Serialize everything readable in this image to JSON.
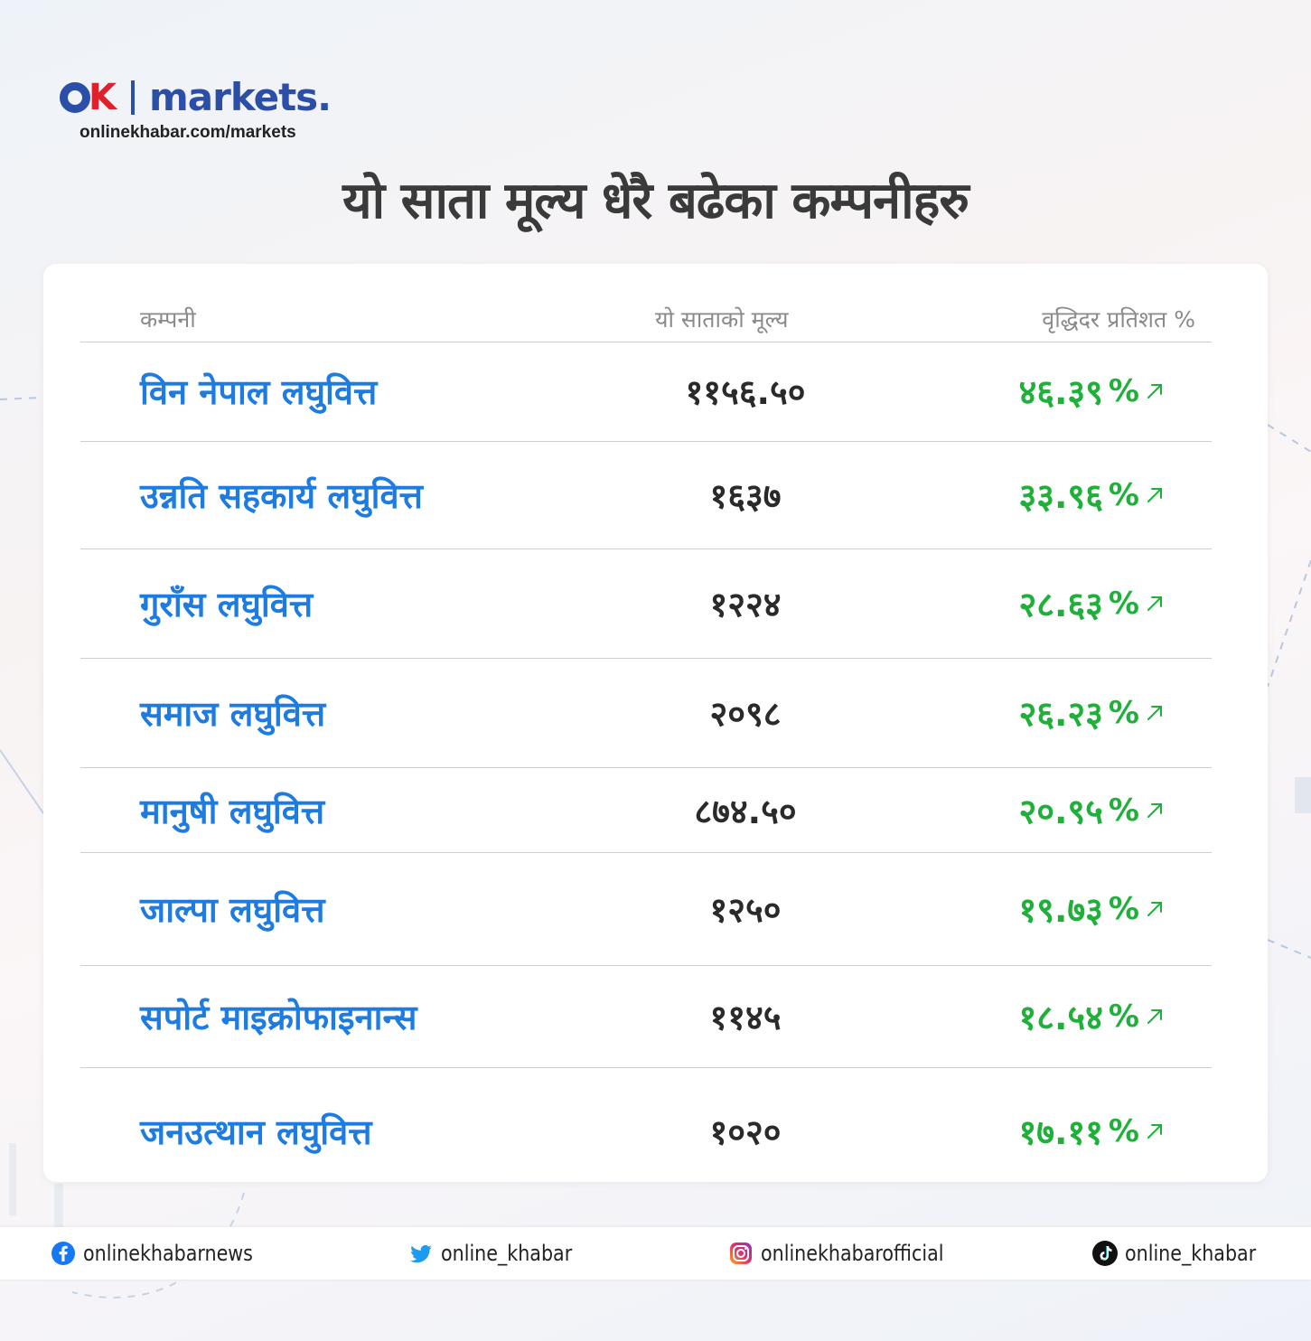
{
  "brand": {
    "name": "markets.",
    "url": "onlinekhabar.com/markets",
    "colors": {
      "blue": "#2b4fa8",
      "red": "#e0202a"
    }
  },
  "title": "यो साता मूल्य धेरै बढेका कम्पनीहरु",
  "table": {
    "headers": [
      "कम्पनी",
      "यो साताको मूल्य",
      "वृद्धिदर प्रतिशत %"
    ],
    "rows": [
      {
        "company": "विन नेपाल लघुवित्त",
        "price": "११५६.५०",
        "growth": "४६.३९"
      },
      {
        "company": "उन्नति सहकार्य लघुवित्त",
        "price": "१६३७",
        "growth": "३३.९६"
      },
      {
        "company": "गुराँस लघुवित्त",
        "price": "१२२४",
        "growth": "२८.६३"
      },
      {
        "company": "समाज लघुवित्त",
        "price": "२०९८",
        "growth": "२६.२३"
      },
      {
        "company": "मानुषी लघुवित्त",
        "price": "८७४.५०",
        "growth": "२०.९५"
      },
      {
        "company": "जाल्पा लघुवित्त",
        "price": "१२५०",
        "growth": "१९.७३"
      },
      {
        "company": "सपोर्ट माइक्रोफाइनान्स",
        "price": "११४५",
        "growth": "१८.५४"
      },
      {
        "company": "जनउत्थान लघुवित्त",
        "price": "१०२०",
        "growth": "१७.११"
      }
    ],
    "percent_sign": "%",
    "colors": {
      "company": "#1e7be0",
      "price": "#2a2a2a",
      "growth": "#1fb03a"
    },
    "growth_icon": "arrow-up-right-icon"
  },
  "footer": {
    "facebook": {
      "icon": "facebook-icon",
      "handle": "onlinekhabarnews"
    },
    "twitter": {
      "icon": "twitter-icon",
      "handle": "online_khabar"
    },
    "instagram": {
      "icon": "instagram-icon",
      "handle": "onlinekhabarofficial"
    },
    "tiktok": {
      "icon": "tiktok-icon",
      "handle": "online_khabar"
    }
  }
}
